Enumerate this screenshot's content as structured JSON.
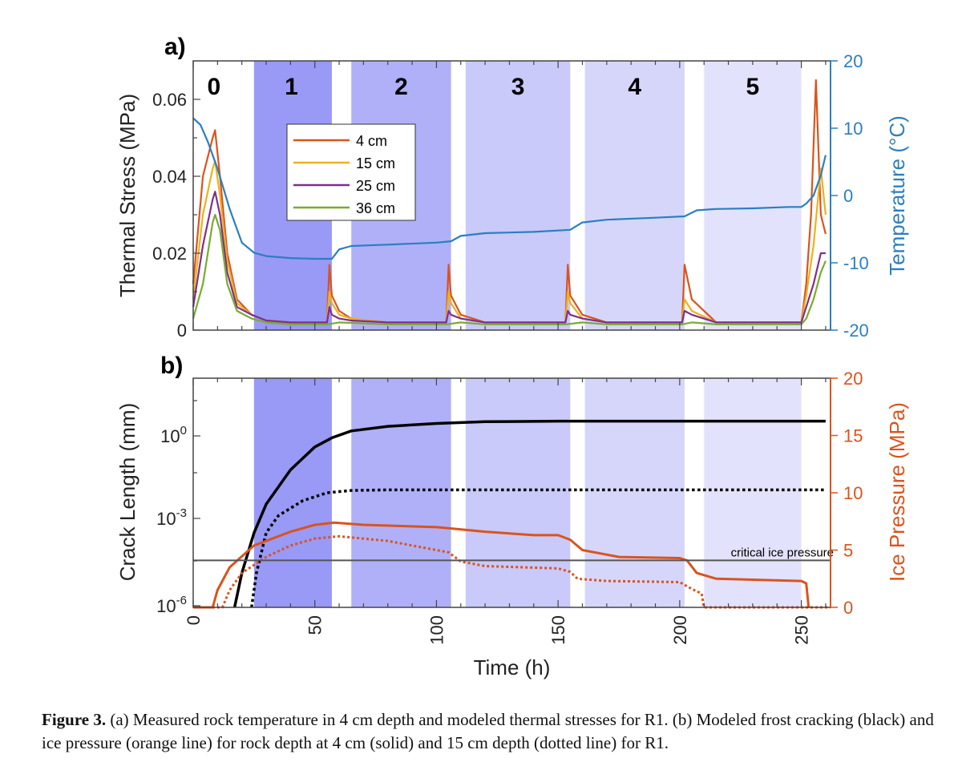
{
  "caption": {
    "label": "Figure 3.",
    "text": "(a) Measured rock temperature in 4 cm depth and modeled thermal stresses for R1. (b) Modeled frost cracking (black) and ice pressure (orange line) for rock depth at 4 cm (solid) and 15 cm depth (dotted line) for R1."
  },
  "chart_data": [
    {
      "type": "line",
      "panel_label": "a)",
      "xlabel": "Time (h)",
      "ylabel": "Thermal Stress (MPa)",
      "y2label": "Temperature (°C)",
      "xlim": [
        0,
        262
      ],
      "ylim": [
        0,
        0.07
      ],
      "y2lim": [
        -20,
        20
      ],
      "yticks": [
        0,
        0.02,
        0.04,
        0.06
      ],
      "ytick_labels": [
        "0",
        "0.02",
        "0.04",
        "0.06"
      ],
      "y2ticks": [
        -20,
        -10,
        0,
        10,
        20
      ],
      "y2tick_labels": [
        "-20",
        "-10",
        "0",
        "10",
        "20"
      ],
      "stage_bands": [
        {
          "label": "0",
          "x": [
            0,
            25
          ],
          "color": "#ffffff"
        },
        {
          "label": "1",
          "x": [
            25,
            57
          ],
          "color": "#9999f6"
        },
        {
          "label": "2",
          "x": [
            65,
            106
          ],
          "color": "#b0b0f8"
        },
        {
          "label": "3",
          "x": [
            112,
            155
          ],
          "color": "#c9c9fa"
        },
        {
          "label": "4",
          "x": [
            161,
            202
          ],
          "color": "#d6d6fb"
        },
        {
          "label": "5",
          "x": [
            210,
            250
          ],
          "color": "#e2e2fc"
        }
      ],
      "legend": {
        "position": "upper-left-inside"
      },
      "series": [
        {
          "name": "4 cm",
          "color": "#d9541e",
          "x": [
            0,
            4,
            8,
            9,
            11,
            14,
            18,
            24,
            30,
            40,
            50,
            55,
            56,
            57,
            60,
            65,
            80,
            100,
            104,
            105,
            106,
            110,
            120,
            150,
            153,
            154,
            155,
            160,
            170,
            200,
            201,
            202,
            205,
            215,
            245,
            250,
            252,
            254,
            256,
            258,
            260
          ],
          "y": [
            0.012,
            0.04,
            0.05,
            0.052,
            0.04,
            0.02,
            0.008,
            0.004,
            0.0025,
            0.002,
            0.002,
            0.002,
            0.017,
            0.009,
            0.005,
            0.003,
            0.002,
            0.002,
            0.002,
            0.017,
            0.009,
            0.004,
            0.002,
            0.002,
            0.002,
            0.017,
            0.009,
            0.004,
            0.002,
            0.002,
            0.002,
            0.017,
            0.008,
            0.002,
            0.002,
            0.002,
            0.012,
            0.03,
            0.065,
            0.03,
            0.025
          ]
        },
        {
          "name": "15 cm",
          "color": "#edb120",
          "x": [
            0,
            4,
            8,
            9,
            11,
            14,
            18,
            24,
            30,
            40,
            55,
            56,
            57,
            60,
            65,
            80,
            104,
            105,
            106,
            110,
            120,
            153,
            154,
            155,
            160,
            170,
            201,
            202,
            205,
            215,
            250,
            252,
            255,
            258,
            260
          ],
          "y": [
            0.008,
            0.03,
            0.042,
            0.044,
            0.035,
            0.018,
            0.007,
            0.004,
            0.0025,
            0.002,
            0.002,
            0.01,
            0.007,
            0.004,
            0.003,
            0.002,
            0.002,
            0.01,
            0.007,
            0.003,
            0.002,
            0.002,
            0.01,
            0.007,
            0.003,
            0.002,
            0.002,
            0.008,
            0.005,
            0.002,
            0.002,
            0.009,
            0.022,
            0.042,
            0.03
          ]
        },
        {
          "name": "25 cm",
          "color": "#7e2f8e",
          "x": [
            0,
            4,
            8,
            9,
            11,
            14,
            18,
            24,
            30,
            40,
            55,
            56,
            57,
            60,
            65,
            80,
            104,
            105,
            106,
            110,
            120,
            153,
            154,
            155,
            160,
            170,
            201,
            202,
            205,
            215,
            250,
            252,
            255,
            258,
            260
          ],
          "y": [
            0.006,
            0.022,
            0.034,
            0.036,
            0.03,
            0.015,
            0.006,
            0.004,
            0.0025,
            0.002,
            0.002,
            0.006,
            0.004,
            0.003,
            0.0025,
            0.002,
            0.002,
            0.005,
            0.004,
            0.003,
            0.002,
            0.002,
            0.005,
            0.004,
            0.003,
            0.002,
            0.002,
            0.005,
            0.004,
            0.002,
            0.002,
            0.006,
            0.012,
            0.02,
            0.02
          ]
        },
        {
          "name": "36 cm",
          "color": "#77ac30",
          "x": [
            0,
            4,
            8,
            9,
            11,
            14,
            18,
            24,
            30,
            40,
            55,
            60,
            80,
            104,
            110,
            120,
            153,
            160,
            170,
            201,
            205,
            215,
            250,
            252,
            255,
            258,
            260
          ],
          "y": [
            0.003,
            0.012,
            0.028,
            0.03,
            0.026,
            0.012,
            0.005,
            0.003,
            0.002,
            0.0015,
            0.0015,
            0.002,
            0.0015,
            0.0015,
            0.002,
            0.0015,
            0.0015,
            0.002,
            0.0015,
            0.0015,
            0.002,
            0.0015,
            0.0015,
            0.003,
            0.008,
            0.015,
            0.018
          ]
        },
        {
          "name": "",
          "axis": "right",
          "color": "#2b7fc0",
          "x": [
            0,
            3,
            6,
            10,
            15,
            20,
            25,
            30,
            40,
            50,
            57,
            60,
            65,
            80,
            100,
            106,
            110,
            120,
            140,
            155,
            160,
            170,
            190,
            202,
            207,
            215,
            230,
            245,
            250,
            252,
            255,
            258,
            260
          ],
          "y": [
            11.5,
            10.5,
            8,
            4,
            -2,
            -7,
            -8.5,
            -9,
            -9.3,
            -9.4,
            -9.4,
            -8,
            -7.5,
            -7.3,
            -7,
            -6.8,
            -6,
            -5.6,
            -5.4,
            -5.1,
            -4,
            -3.6,
            -3.3,
            -3.1,
            -2.2,
            -2,
            -1.9,
            -1.7,
            -1.7,
            -1.2,
            0,
            3,
            6
          ]
        }
      ]
    },
    {
      "type": "line",
      "panel_label": "b)",
      "xlabel": "Time (h)",
      "ylabel": "Crack Length (mm)",
      "y2label": "Ice Pressure (MPa)",
      "xlim": [
        0,
        262
      ],
      "y2lim": [
        0,
        20
      ],
      "ylog": true,
      "ytick_labels": [
        "10",
        "10",
        "10"
      ],
      "ytick_exponents": [
        "-6",
        "-3",
        "0"
      ],
      "y2ticks": [
        0,
        5,
        10,
        15,
        20
      ],
      "y2tick_labels": [
        "0",
        "5",
        "10",
        "15",
        "20"
      ],
      "xticks": [
        0,
        50,
        100,
        150,
        200,
        250
      ],
      "xtick_labels": [
        "0",
        "50",
        "100",
        "150",
        "200",
        "250"
      ],
      "annotations": [
        {
          "text": "critical ice pressure",
          "axis": "right",
          "y": 4.1
        }
      ],
      "series": [
        {
          "name": "",
          "style": "solid",
          "color": "#000000",
          "x": [
            17,
            20,
            25,
            30,
            40,
            50,
            57,
            65,
            80,
            100,
            120,
            150,
            200,
            260
          ],
          "y_right": [
            0,
            3,
            6.5,
            9,
            12,
            14,
            14.8,
            15.4,
            15.8,
            16.05,
            16.2,
            16.25,
            16.25,
            16.25
          ]
        },
        {
          "name": "",
          "style": "dotted",
          "color": "#000000",
          "x": [
            24,
            26,
            30,
            35,
            45,
            55,
            65,
            80,
            100,
            150,
            260
          ],
          "y_right": [
            0,
            3,
            6.5,
            8,
            9.3,
            10,
            10.2,
            10.25,
            10.25,
            10.25,
            10.25
          ]
        },
        {
          "name": "",
          "style": "solid",
          "color": "#d9541e",
          "x": [
            0,
            8,
            10,
            15,
            25,
            40,
            50,
            58,
            70,
            100,
            105,
            120,
            140,
            150,
            155,
            160,
            175,
            200,
            203,
            207,
            215,
            250,
            252,
            253
          ],
          "y_right": [
            0,
            0,
            1.5,
            3.5,
            5.4,
            6.6,
            7.2,
            7.4,
            7.2,
            7.0,
            6.9,
            6.6,
            6.3,
            6.3,
            5.9,
            5.0,
            4.4,
            4.3,
            4.1,
            3.0,
            2.5,
            2.3,
            2.1,
            0
          ]
        },
        {
          "name": "",
          "style": "dotted",
          "color": "#d9541e",
          "x": [
            0,
            12,
            15,
            20,
            30,
            40,
            50,
            60,
            80,
            100,
            105,
            110,
            120,
            150,
            155,
            158,
            170,
            200,
            205,
            209,
            210,
            262
          ],
          "y_right": [
            0,
            0,
            1.5,
            3,
            4.4,
            5.4,
            6.0,
            6.2,
            5.8,
            5.0,
            4.8,
            4.0,
            3.6,
            3.4,
            3.1,
            2.5,
            2.3,
            2.2,
            1.6,
            1.2,
            0,
            0
          ]
        }
      ]
    }
  ]
}
